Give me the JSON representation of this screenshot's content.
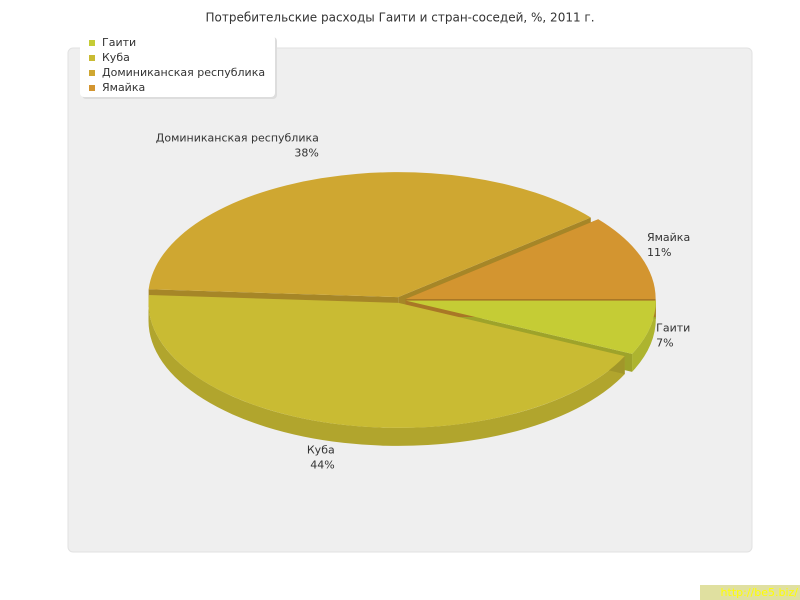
{
  "chart_data": {
    "type": "pie",
    "title": "Потребительские расходы Гаити и стран-соседей, %, 2011 г.",
    "categories": [
      "Гаити",
      "Куба",
      "Доминиканская республика",
      "Ямайка"
    ],
    "values": [
      7,
      44,
      38,
      11
    ],
    "value_labels": [
      "7%",
      "44%",
      "38%",
      "11%"
    ],
    "colors": [
      "#c5cc35",
      "#c9bb33",
      "#cfa731",
      "#d39530"
    ],
    "legend": "top-left"
  },
  "watermark": "http://be5.biz/"
}
